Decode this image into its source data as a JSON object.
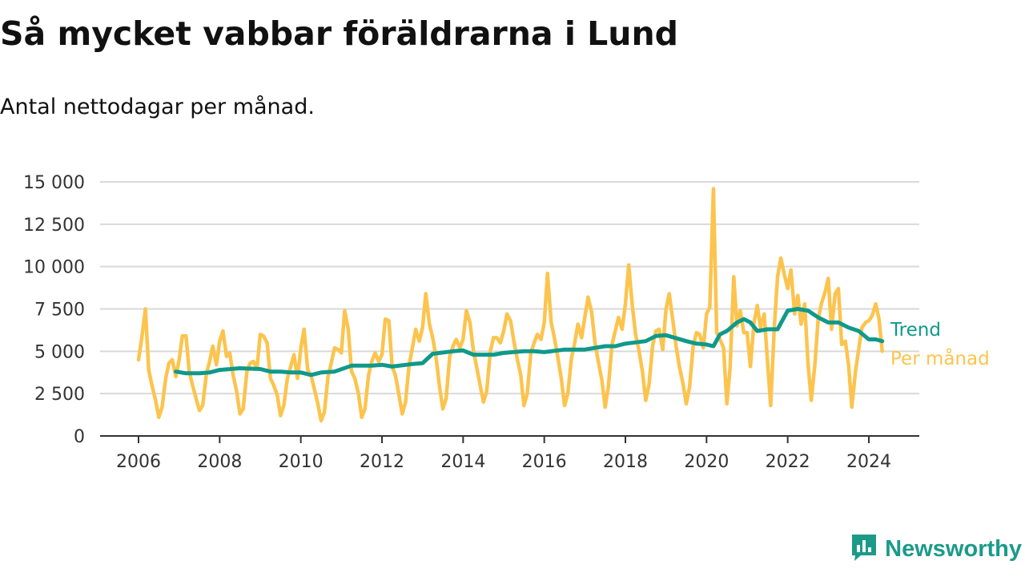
{
  "header": {
    "title": "Så mycket vabbar föräldrarna i Lund",
    "subtitle": "Antal nettodagar per månad."
  },
  "brand": {
    "name": "Newsworthy",
    "icon": "newsworthy-logo-icon",
    "color": "#1b9a8a"
  },
  "colors": {
    "monthly": "#fcc44e",
    "trend": "#10998a",
    "grid": "#d9d9d9",
    "axis": "#333333"
  },
  "chart_data": {
    "type": "line",
    "title": "Så mycket vabbar föräldrarna i Lund",
    "subtitle": "Antal nettodagar per månad.",
    "xlabel": "",
    "ylabel": "",
    "x_ticks": [
      "2006",
      "2008",
      "2010",
      "2012",
      "2014",
      "2016",
      "2018",
      "2020",
      "2022",
      "2024"
    ],
    "y_ticks": [
      "0",
      "2 500",
      "5 000",
      "7 500",
      "10 000",
      "12 500",
      "15 000"
    ],
    "xlim": [
      2006,
      2025
    ],
    "ylim": [
      0,
      15000
    ],
    "grid": true,
    "series": [
      {
        "name": "Per månad",
        "color": "#fcc44e",
        "x": [
          2006.0,
          2006.08,
          2006.17,
          2006.25,
          2006.33,
          2006.42,
          2006.5,
          2006.58,
          2006.67,
          2006.75,
          2006.83,
          2006.92,
          2007.0,
          2007.08,
          2007.17,
          2007.25,
          2007.33,
          2007.42,
          2007.5,
          2007.58,
          2007.67,
          2007.75,
          2007.83,
          2007.92,
          2008.0,
          2008.08,
          2008.17,
          2008.25,
          2008.33,
          2008.42,
          2008.5,
          2008.58,
          2008.67,
          2008.75,
          2008.83,
          2008.92,
          2009.0,
          2009.08,
          2009.17,
          2009.25,
          2009.33,
          2009.42,
          2009.5,
          2009.58,
          2009.67,
          2009.75,
          2009.83,
          2009.92,
          2010.0,
          2010.08,
          2010.17,
          2010.25,
          2010.33,
          2010.42,
          2010.5,
          2010.58,
          2010.67,
          2010.75,
          2010.83,
          2010.92,
          2011.0,
          2011.08,
          2011.17,
          2011.25,
          2011.33,
          2011.42,
          2011.5,
          2011.58,
          2011.67,
          2011.75,
          2011.83,
          2011.92,
          2012.0,
          2012.08,
          2012.17,
          2012.25,
          2012.33,
          2012.42,
          2012.5,
          2012.58,
          2012.67,
          2012.75,
          2012.83,
          2012.92,
          2013.0,
          2013.08,
          2013.17,
          2013.25,
          2013.33,
          2013.42,
          2013.5,
          2013.58,
          2013.67,
          2013.75,
          2013.83,
          2013.92,
          2014.0,
          2014.08,
          2014.17,
          2014.25,
          2014.33,
          2014.42,
          2014.5,
          2014.58,
          2014.67,
          2014.75,
          2014.83,
          2014.92,
          2015.0,
          2015.08,
          2015.17,
          2015.25,
          2015.33,
          2015.42,
          2015.5,
          2015.58,
          2015.67,
          2015.75,
          2015.83,
          2015.92,
          2016.0,
          2016.08,
          2016.17,
          2016.25,
          2016.33,
          2016.42,
          2016.5,
          2016.58,
          2016.67,
          2016.75,
          2016.83,
          2016.92,
          2017.0,
          2017.08,
          2017.17,
          2017.25,
          2017.33,
          2017.42,
          2017.5,
          2017.58,
          2017.67,
          2017.75,
          2017.83,
          2017.92,
          2018.0,
          2018.08,
          2018.17,
          2018.25,
          2018.33,
          2018.42,
          2018.5,
          2018.58,
          2018.67,
          2018.75,
          2018.83,
          2018.92,
          2019.0,
          2019.08,
          2019.17,
          2019.25,
          2019.33,
          2019.42,
          2019.5,
          2019.58,
          2019.67,
          2019.75,
          2019.83,
          2019.92,
          2020.0,
          2020.08,
          2020.17,
          2020.25,
          2020.33,
          2020.42,
          2020.5,
          2020.58,
          2020.67,
          2020.75,
          2020.83,
          2020.92,
          2021.0,
          2021.08,
          2021.17,
          2021.25,
          2021.33,
          2021.42,
          2021.5,
          2021.58,
          2021.67,
          2021.75,
          2021.83,
          2021.92,
          2022.0,
          2022.08,
          2022.17,
          2022.25,
          2022.33,
          2022.42,
          2022.5,
          2022.58,
          2022.67,
          2022.75,
          2022.83,
          2022.92,
          2023.0,
          2023.08,
          2023.17,
          2023.25,
          2023.33,
          2023.42,
          2023.5,
          2023.58,
          2023.67,
          2023.75,
          2023.83,
          2023.92,
          2024.0,
          2024.08,
          2024.17,
          2024.25,
          2024.33
        ],
        "values": [
          4500,
          5800,
          7500,
          3900,
          3000,
          2100,
          1100,
          1700,
          3400,
          4300,
          4500,
          3500,
          4500,
          5900,
          5900,
          3800,
          3000,
          2200,
          1500,
          1800,
          3600,
          4400,
          5300,
          4200,
          5600,
          6200,
          4700,
          4900,
          3600,
          2600,
          1300,
          1600,
          3800,
          4300,
          4400,
          4000,
          6000,
          5900,
          5500,
          3400,
          3000,
          2400,
          1200,
          1800,
          3400,
          4100,
          4800,
          3400,
          5200,
          6300,
          3900,
          3600,
          2800,
          1900,
          900,
          1400,
          3500,
          4300,
          5200,
          5100,
          4900,
          7400,
          6300,
          3800,
          3400,
          2500,
          1100,
          1600,
          3600,
          4400,
          4900,
          4400,
          4800,
          6900,
          6800,
          4100,
          3600,
          2400,
          1300,
          2000,
          4200,
          5200,
          6300,
          5600,
          6400,
          8400,
          6600,
          5800,
          4700,
          2900,
          1600,
          2200,
          4700,
          5300,
          5700,
          5200,
          5700,
          7400,
          6700,
          5100,
          4100,
          3000,
          2000,
          2600,
          5000,
          5800,
          5800,
          5500,
          6200,
          7200,
          6800,
          5600,
          4600,
          3600,
          1800,
          2500,
          4900,
          5500,
          6000,
          5700,
          6700,
          9600,
          6700,
          5800,
          4700,
          3400,
          1800,
          2500,
          4600,
          5500,
          6600,
          5800,
          7000,
          8200,
          7300,
          5500,
          4400,
          3300,
          1700,
          2900,
          5400,
          6200,
          7000,
          6300,
          7800,
          10100,
          7700,
          6000,
          5100,
          3800,
          2100,
          3000,
          5300,
          6200,
          6300,
          5100,
          7500,
          8400,
          6800,
          5300,
          4100,
          3100,
          1900,
          2900,
          5300,
          6100,
          6000,
          5200,
          7200,
          7600,
          14600,
          6100,
          5700,
          5200,
          1900,
          4000,
          9400,
          6500,
          7400,
          6100,
          6100,
          4100,
          6700,
          7700,
          6400,
          7200,
          4500,
          1800,
          6400,
          9400,
          10500,
          9500,
          8700,
          9800,
          7200,
          8300,
          6600,
          7800,
          4300,
          2100,
          4200,
          6900,
          7800,
          8500,
          9300,
          6300,
          8400,
          8700,
          5400,
          5600,
          4200,
          1700,
          3800,
          5100,
          6400,
          6700,
          6800,
          7100,
          7800,
          6900,
          5000
        ]
      },
      {
        "name": "Trend",
        "color": "#10998a",
        "x": [
          2006.92,
          2007.17,
          2007.5,
          2007.75,
          2008.0,
          2008.5,
          2009.0,
          2009.25,
          2009.5,
          2009.75,
          2010.0,
          2010.25,
          2010.5,
          2010.83,
          2011.25,
          2011.75,
          2012.0,
          2012.25,
          2012.75,
          2013.0,
          2013.25,
          2013.75,
          2014.0,
          2014.25,
          2014.75,
          2015.0,
          2015.5,
          2015.75,
          2016.0,
          2016.5,
          2016.75,
          2017.0,
          2017.5,
          2017.75,
          2018.0,
          2018.5,
          2018.75,
          2019.0,
          2019.5,
          2019.75,
          2020.0,
          2020.17,
          2020.33,
          2020.5,
          2020.75,
          2020.92,
          2021.08,
          2021.25,
          2021.5,
          2021.75,
          2022.0,
          2022.25,
          2022.5,
          2022.75,
          2023.0,
          2023.25,
          2023.5,
          2023.75,
          2024.0,
          2024.17,
          2024.33
        ],
        "values": [
          3800,
          3700,
          3700,
          3750,
          3900,
          4000,
          3950,
          3800,
          3800,
          3750,
          3750,
          3600,
          3750,
          3800,
          4150,
          4150,
          4200,
          4100,
          4250,
          4300,
          4850,
          5000,
          5050,
          4800,
          4800,
          4900,
          5000,
          5000,
          4950,
          5100,
          5100,
          5100,
          5300,
          5300,
          5450,
          5600,
          5900,
          5950,
          5600,
          5450,
          5400,
          5300,
          6000,
          6200,
          6700,
          6900,
          6700,
          6200,
          6300,
          6300,
          7400,
          7500,
          7400,
          7000,
          6700,
          6700,
          6400,
          6200,
          5700,
          5700,
          5600
        ]
      }
    ],
    "legend": [
      "Trend",
      "Per månad"
    ],
    "legend_placement": "right, at line ends"
  }
}
